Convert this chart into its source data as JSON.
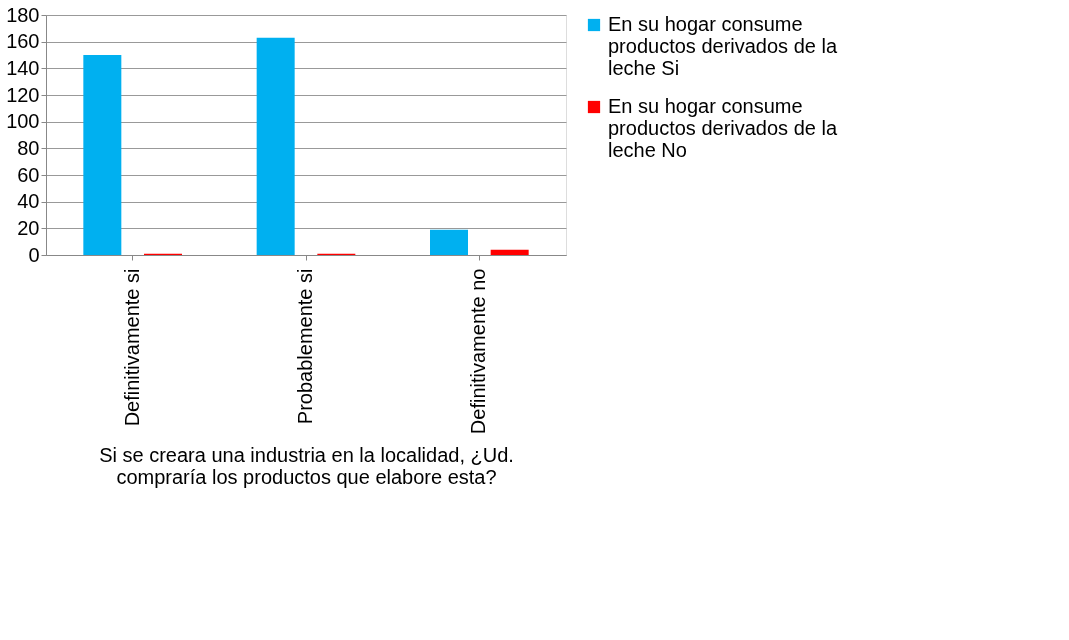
{
  "chart_data": {
    "type": "bar",
    "categories": [
      "Definitivamente si",
      "Probablemente si",
      "Definitivamente no"
    ],
    "xlabel": "Si se creara una industria en la localidad, ¿Ud. compraría los productos que elabore esta?",
    "series": [
      {
        "name": "En su hogar consume productos derivados de la leche Si",
        "color": "#00b0f0",
        "values": [
          150,
          163,
          19
        ]
      },
      {
        "name": "En su hogar consume productos derivados de la leche No",
        "color": "#ff0000",
        "values": [
          1,
          1,
          4
        ]
      }
    ],
    "ylim": [
      0,
      180
    ],
    "yticks": [
      0,
      20,
      40,
      60,
      80,
      100,
      120,
      140,
      160,
      180
    ],
    "grid": "y",
    "legend": "right"
  }
}
